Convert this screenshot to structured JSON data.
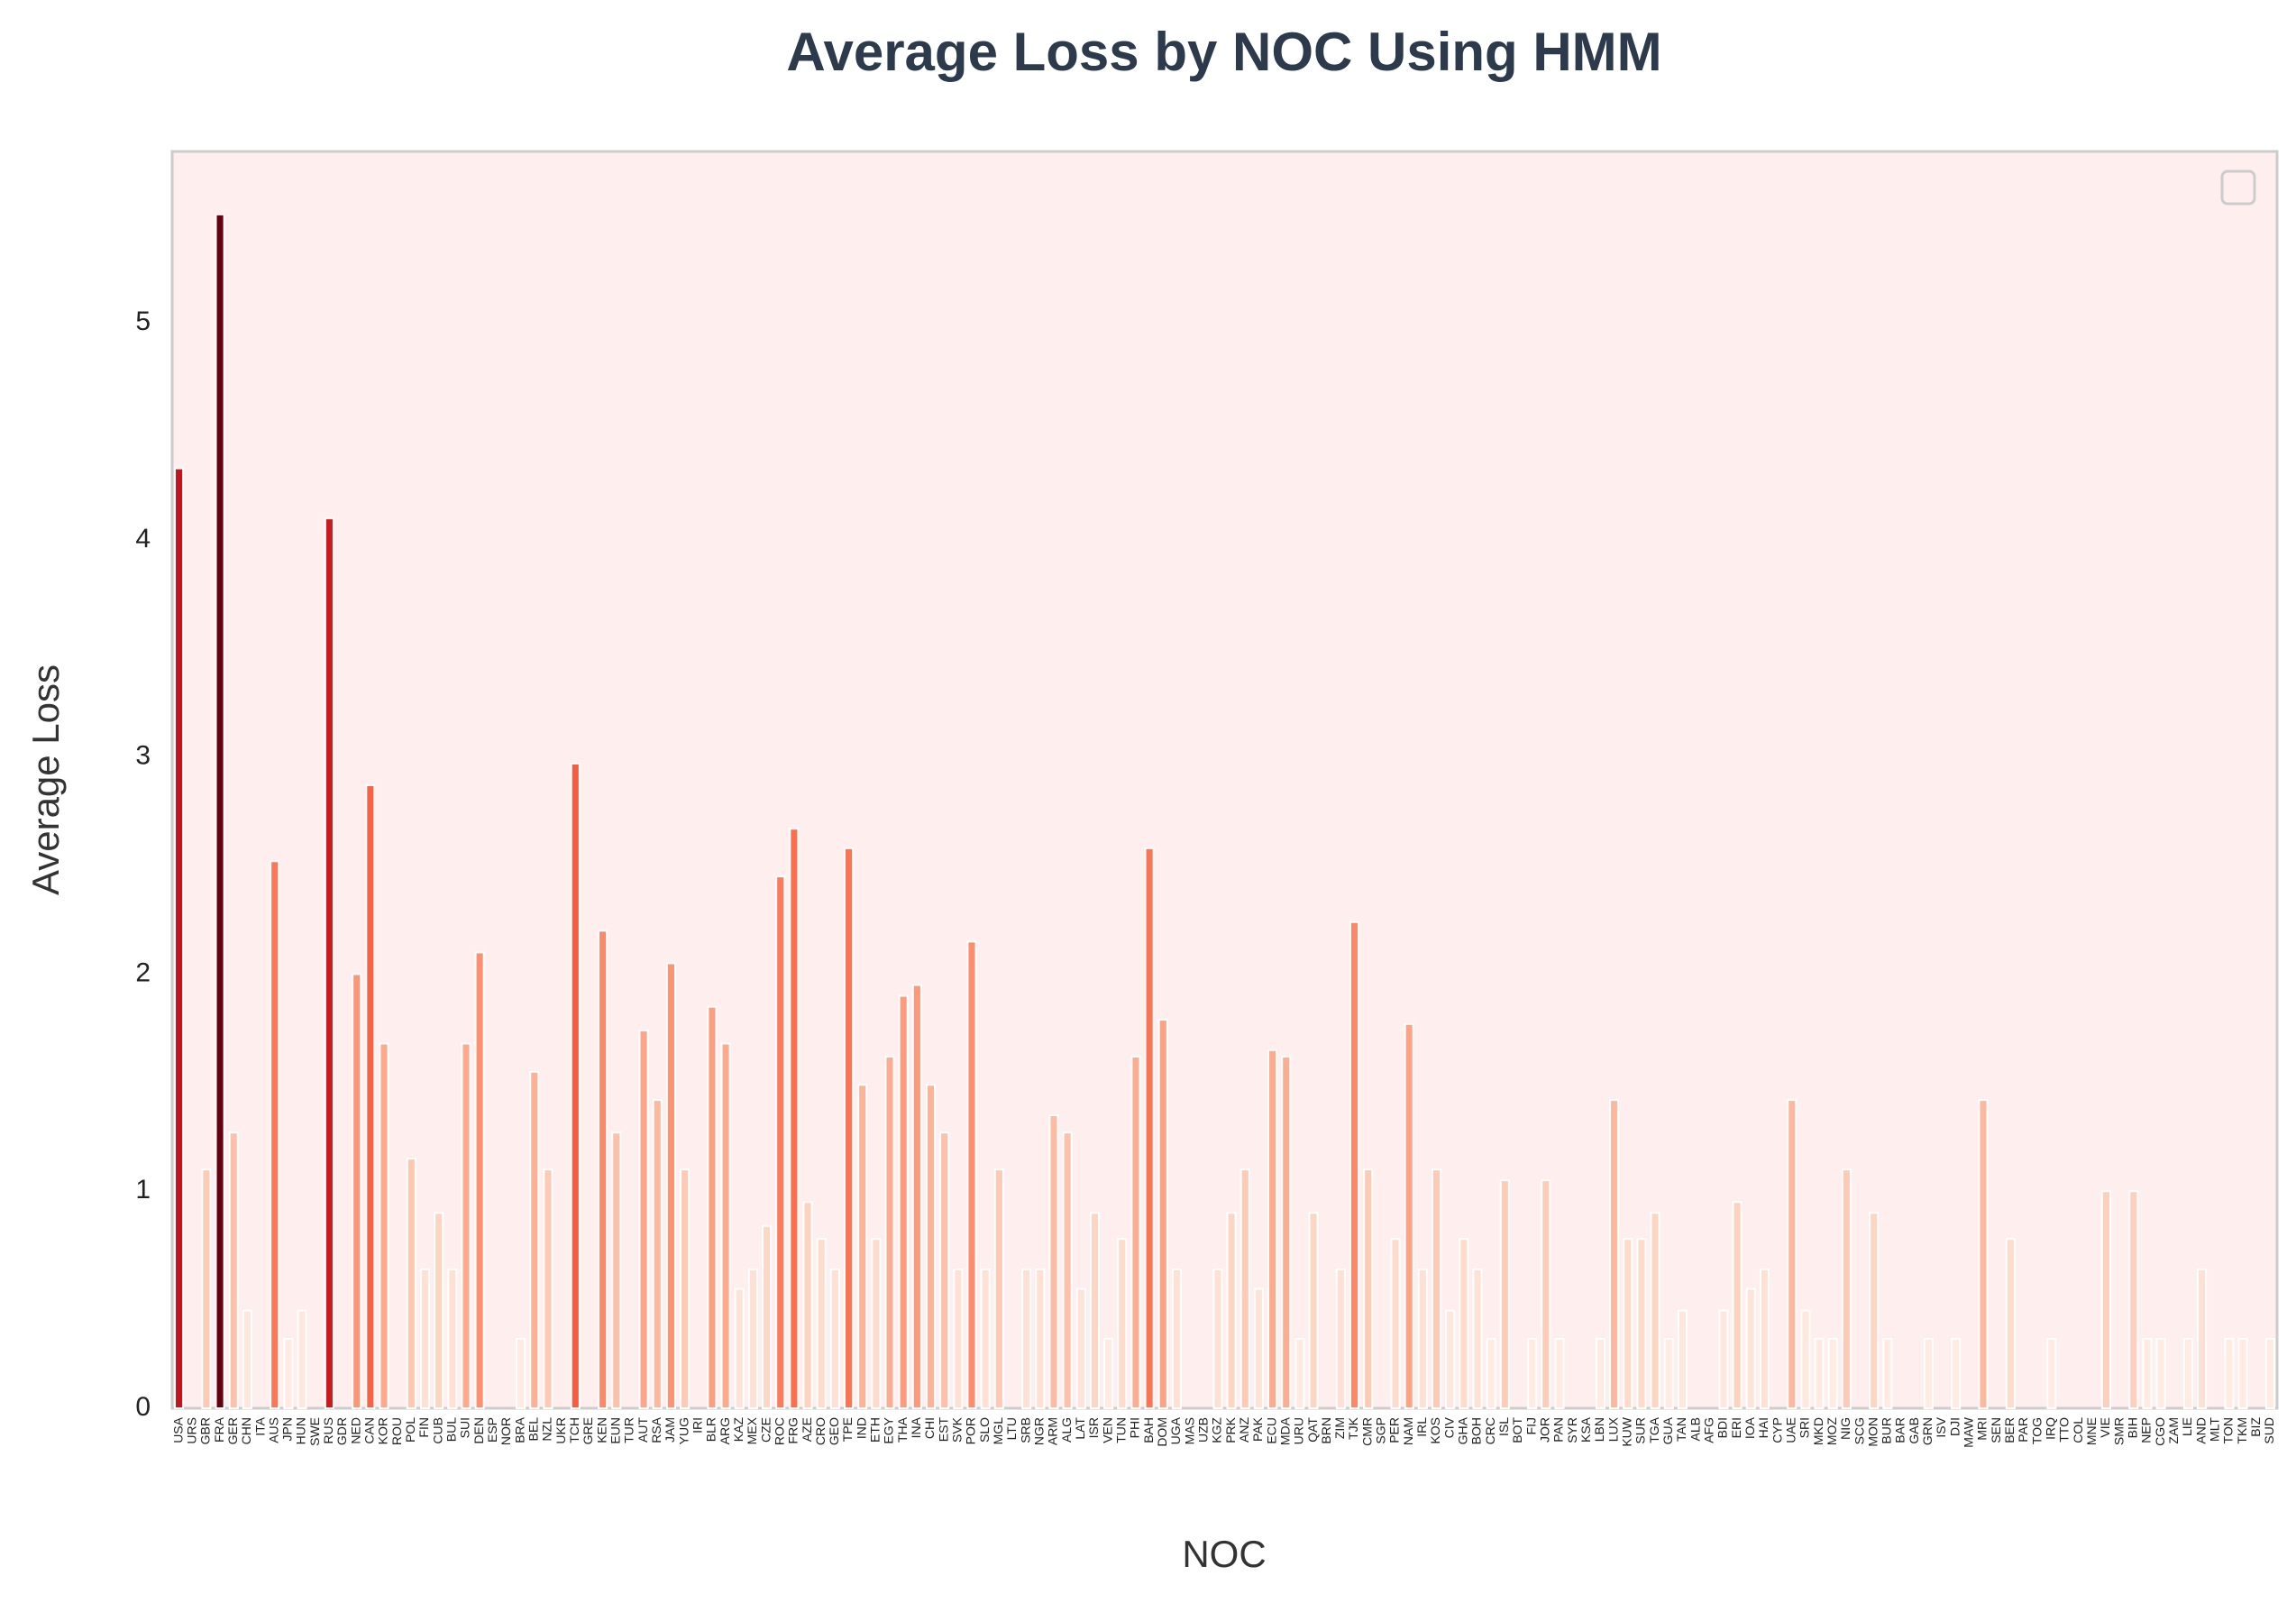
{
  "chart_data": {
    "type": "bar",
    "title": "Average Loss by NOC Using HMM",
    "x_label": "NOC",
    "y_label": "Average Loss",
    "colormap": "Reds",
    "legend": "upper right",
    "grid": false,
    "categories": [
      "USA",
      "URS",
      "GBR",
      "FRA",
      "GER",
      "CHN",
      "ITA",
      "AUS",
      "JPN",
      "HUN",
      "SWE",
      "RUS",
      "GDR",
      "NED",
      "CAN",
      "KOR",
      "ROU",
      "POL",
      "FIN",
      "CUB",
      "BUL",
      "SUI",
      "DEN",
      "ESP",
      "NOR",
      "BRA",
      "BEL",
      "NZL",
      "UKR",
      "TCH",
      "GRE",
      "KEN",
      "EUN",
      "TUR",
      "AUT",
      "RSA",
      "JAM",
      "YUG",
      "IRI",
      "BLR",
      "ARG",
      "KAZ",
      "MEX",
      "CZE",
      "ROC",
      "FRG",
      "AZE",
      "CRO",
      "GEO",
      "TPE",
      "IND",
      "ETH",
      "EGY",
      "THA",
      "INA",
      "CHI",
      "EST",
      "SVK",
      "POR",
      "SLO",
      "MGL",
      "LTU",
      "SRB",
      "NGR",
      "ARM",
      "ALG",
      "LAT",
      "ISR",
      "VEN",
      "TUN",
      "PHI",
      "BAH",
      "DOM",
      "UGA",
      "MAS",
      "UZB",
      "KGZ",
      "PRK",
      "ANZ",
      "PAK",
      "ECU",
      "MDA",
      "URU",
      "QAT",
      "BRN",
      "ZIM",
      "TJK",
      "CMR",
      "SGP",
      "PER",
      "NAM",
      "IRL",
      "KOS",
      "CIV",
      "GHA",
      "BOH",
      "CRC",
      "ISL",
      "BOT",
      "FIJ",
      "JOR",
      "PAN",
      "SYR",
      "KSA",
      "LBN",
      "LUX",
      "KUW",
      "SUR",
      "TGA",
      "GUA",
      "TAN",
      "ALB",
      "AFG",
      "BDI",
      "ERI",
      "IOA",
      "HAI",
      "CYP",
      "UAE",
      "SRI",
      "MKD",
      "MOZ",
      "NIG",
      "SCG",
      "MON",
      "BUR",
      "BAR",
      "GAB",
      "GRN",
      "ISV",
      "DJI",
      "MAW",
      "MRI",
      "SEN",
      "BER",
      "PAR",
      "TOG",
      "IRQ",
      "TTO",
      "COL",
      "MNE",
      "VIE",
      "SMR",
      "BIH",
      "NEP",
      "CGO",
      "ZAM",
      "LIE",
      "AND",
      "MLT",
      "TON",
      "TKM",
      "BIZ",
      "SUD"
    ],
    "values": [
      4.33,
      0,
      1.1,
      5.5,
      1.27,
      0.45,
      0,
      2.52,
      0.32,
      0.45,
      0,
      4.1,
      0,
      2.0,
      2.87,
      1.68,
      0,
      1.15,
      0.64,
      0.9,
      0.64,
      1.68,
      2.1,
      0,
      0,
      0.32,
      1.55,
      1.1,
      0,
      2.97,
      0,
      2.2,
      1.27,
      0,
      1.74,
      1.42,
      2.05,
      1.1,
      0,
      1.85,
      1.68,
      0.55,
      0.64,
      0.84,
      2.45,
      2.67,
      0.95,
      0.78,
      0.64,
      2.58,
      1.49,
      0.78,
      1.62,
      1.9,
      1.95,
      1.49,
      1.27,
      0.64,
      2.15,
      0.64,
      1.1,
      0,
      0.64,
      0.64,
      1.35,
      1.27,
      0.55,
      0.9,
      0.32,
      0.78,
      1.62,
      2.58,
      1.79,
      0.64,
      0,
      0,
      0.64,
      0.9,
      1.1,
      0.55,
      1.65,
      1.62,
      0.32,
      0.9,
      0,
      0.64,
      2.24,
      1.1,
      0,
      0.78,
      1.77,
      0.64,
      1.1,
      0.45,
      0.78,
      0.64,
      0.32,
      1.05,
      0,
      0.32,
      1.05,
      0.32,
      0,
      0,
      0.32,
      1.42,
      0.78,
      0.78,
      0.9,
      0.32,
      0.45,
      0,
      0,
      0.45,
      0.95,
      0.55,
      0.64,
      0,
      1.42,
      0.45,
      0.32,
      0.32,
      1.1,
      0,
      0.9,
      0.32,
      0,
      0,
      0.32,
      0,
      0.32,
      0,
      1.42,
      0,
      0.78,
      0,
      0,
      0.32,
      0,
      0,
      0,
      1.0,
      0,
      1.0,
      0.32,
      0.32,
      0,
      0.32,
      0.64,
      0,
      0.32,
      0.32,
      0,
      0.32
    ],
    "ylim": [
      0,
      5.79
    ],
    "yticks": [
      0,
      1,
      2,
      3,
      4,
      5
    ]
  }
}
